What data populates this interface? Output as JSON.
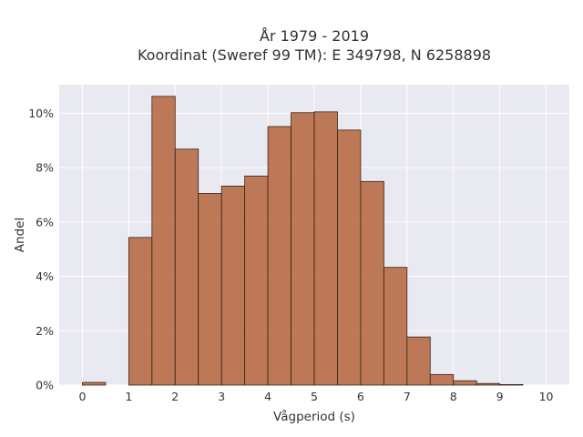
{
  "title": {
    "line1": "År 1979 - 2019",
    "line2": "Koordinat (Sweref 99 TM): E 349798, N 6258898"
  },
  "colors": {
    "plot_background": "#e8e9f1",
    "bar_fill": "#b5643c",
    "bar_edge": "#3a2418",
    "grid": "#ffffff",
    "text": "#333333"
  },
  "chart_data": {
    "type": "bar",
    "xlabel": "Vågperiod (s)",
    "ylabel": "Andel",
    "xlim": [
      -0.5,
      10.5
    ],
    "ylim": [
      0,
      0.1105
    ],
    "grid": true,
    "legend": "none",
    "x_ticks": [
      0,
      1,
      2,
      3,
      4,
      5,
      6,
      7,
      8,
      9,
      10
    ],
    "x_tick_labels": [
      "0",
      "1",
      "2",
      "3",
      "4",
      "5",
      "6",
      "7",
      "8",
      "9",
      "10"
    ],
    "y_ticks": [
      0,
      0.02,
      0.04,
      0.06,
      0.08,
      0.1
    ],
    "y_tick_labels": [
      "0%",
      "2%",
      "4%",
      "6%",
      "8%",
      "10%"
    ],
    "bin_width": 0.5,
    "bin_starts": [
      0,
      0.5,
      1,
      1.5,
      2,
      2.5,
      3,
      3.5,
      4,
      4.5,
      5,
      5.5,
      6,
      6.5,
      7,
      7.5,
      8,
      8.5,
      9,
      9.5
    ],
    "values": [
      0.001,
      0,
      0.0543,
      0.1062,
      0.0868,
      0.0705,
      0.0732,
      0.0769,
      0.0951,
      0.1002,
      0.1005,
      0.0938,
      0.0749,
      0.0433,
      0.0177,
      0.0039,
      0.0016,
      0.0006,
      0.0002,
      0
    ]
  }
}
